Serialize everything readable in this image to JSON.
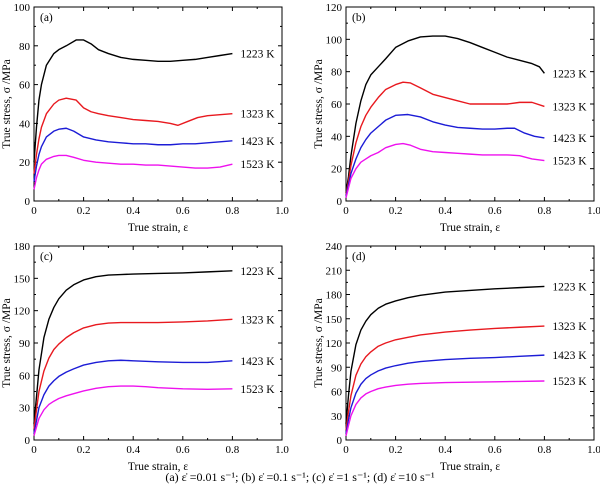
{
  "caption": "(a)   ε̇ =0.01 s⁻¹; (b)   ε̇ =0.1 s⁻¹; (c) ε̇ =1 s⁻¹; (d)   ε̇ =10 s⁻¹",
  "colors": {
    "1223 K": "#000000",
    "1323 K": "#e8191f",
    "1423 K": "#1c1cd6",
    "1523 K": "#ee11ee"
  },
  "chart_data": [
    {
      "type": "line",
      "panel": "(a)",
      "xlabel": "True strain, ε",
      "ylabel": "True stress, σ /MPa",
      "xlim": [
        0,
        1.0
      ],
      "ylim": [
        0,
        100
      ],
      "xticks": [
        "0",
        "0.2",
        "0.4",
        "0.6",
        "0.8",
        "1.0"
      ],
      "yticks": [
        "0",
        "20",
        "40",
        "60",
        "80",
        "100"
      ],
      "legend": "curve labels at right end of each curve",
      "series": [
        {
          "name": "1223 K",
          "x": [
            0,
            0.01,
            0.02,
            0.03,
            0.05,
            0.08,
            0.1,
            0.13,
            0.17,
            0.2,
            0.23,
            0.26,
            0.3,
            0.35,
            0.4,
            0.45,
            0.5,
            0.55,
            0.6,
            0.65,
            0.7,
            0.75,
            0.8
          ],
          "y": [
            20,
            38,
            52,
            60,
            70,
            76,
            78,
            80,
            83,
            83,
            81,
            78,
            76,
            74,
            73,
            72.5,
            72,
            72,
            72.5,
            73,
            74,
            75,
            76
          ]
        },
        {
          "name": "1323 K",
          "x": [
            0,
            0.01,
            0.02,
            0.03,
            0.05,
            0.08,
            0.1,
            0.13,
            0.17,
            0.2,
            0.23,
            0.26,
            0.3,
            0.35,
            0.4,
            0.45,
            0.5,
            0.55,
            0.58,
            0.62,
            0.66,
            0.7,
            0.75,
            0.8
          ],
          "y": [
            14,
            24,
            32,
            38,
            45,
            50,
            52,
            53,
            52,
            48,
            46,
            45,
            44,
            43,
            42,
            41.5,
            41,
            40,
            39,
            41,
            43,
            44,
            44.5,
            45
          ]
        },
        {
          "name": "1423 K",
          "x": [
            0,
            0.01,
            0.02,
            0.03,
            0.05,
            0.08,
            0.1,
            0.13,
            0.16,
            0.2,
            0.25,
            0.3,
            0.35,
            0.4,
            0.45,
            0.5,
            0.55,
            0.6,
            0.65,
            0.7,
            0.75,
            0.8
          ],
          "y": [
            10,
            18,
            24,
            28,
            33,
            36,
            37,
            37.5,
            36,
            33,
            31.5,
            30.5,
            30,
            29.5,
            29.5,
            29,
            29,
            29.5,
            29.5,
            30,
            30.5,
            31
          ]
        },
        {
          "name": "1523 K",
          "x": [
            0,
            0.01,
            0.02,
            0.03,
            0.05,
            0.08,
            0.1,
            0.13,
            0.16,
            0.2,
            0.25,
            0.3,
            0.35,
            0.4,
            0.45,
            0.5,
            0.55,
            0.6,
            0.65,
            0.7,
            0.75,
            0.8
          ],
          "y": [
            6,
            12,
            16,
            19,
            21.5,
            23,
            23.5,
            23.5,
            22.5,
            21,
            20,
            19.5,
            19,
            19,
            18.5,
            18.5,
            18,
            17.5,
            17,
            17,
            17.5,
            19
          ]
        }
      ]
    },
    {
      "type": "line",
      "panel": "(b)",
      "xlabel": "True strain, ε",
      "ylabel": "True stress, σ /MPa",
      "xlim": [
        0,
        1.0
      ],
      "ylim": [
        0,
        120
      ],
      "xticks": [
        "0",
        "0.2",
        "0.4",
        "0.6",
        "0.8",
        "1.0"
      ],
      "yticks": [
        "0",
        "20",
        "40",
        "60",
        "80",
        "100",
        "120"
      ],
      "legend": "curve labels at right end of each curve",
      "series": [
        {
          "name": "1223 K",
          "x": [
            0,
            0.01,
            0.02,
            0.04,
            0.06,
            0.08,
            0.1,
            0.13,
            0.16,
            0.2,
            0.25,
            0.3,
            0.35,
            0.4,
            0.45,
            0.5,
            0.55,
            0.6,
            0.65,
            0.7,
            0.75,
            0.78,
            0.8
          ],
          "y": [
            5,
            15,
            28,
            48,
            62,
            72,
            78,
            83,
            88,
            95,
            99,
            101.5,
            102,
            102,
            100.5,
            98,
            95,
            92,
            89,
            87,
            85,
            83,
            79
          ]
        },
        {
          "name": "1323 K",
          "x": [
            0,
            0.01,
            0.02,
            0.04,
            0.06,
            0.08,
            0.1,
            0.13,
            0.16,
            0.2,
            0.23,
            0.26,
            0.3,
            0.35,
            0.4,
            0.45,
            0.5,
            0.55,
            0.6,
            0.65,
            0.7,
            0.75,
            0.8
          ],
          "y": [
            4,
            12,
            22,
            36,
            46,
            53,
            58,
            64,
            69,
            72,
            73.5,
            73,
            70,
            66,
            64,
            62,
            60,
            60,
            60,
            60,
            61,
            61,
            58.5
          ]
        },
        {
          "name": "1423 K",
          "x": [
            0,
            0.01,
            0.02,
            0.04,
            0.06,
            0.08,
            0.1,
            0.13,
            0.16,
            0.2,
            0.25,
            0.3,
            0.35,
            0.4,
            0.45,
            0.5,
            0.55,
            0.6,
            0.65,
            0.68,
            0.72,
            0.76,
            0.8
          ],
          "y": [
            3,
            10,
            17,
            26,
            33,
            38,
            42,
            46,
            50,
            53,
            53.5,
            52,
            49,
            47,
            45.5,
            45,
            44.5,
            44.5,
            45,
            45,
            42,
            40,
            39
          ]
        },
        {
          "name": "1523 K",
          "x": [
            0,
            0.01,
            0.02,
            0.04,
            0.06,
            0.08,
            0.1,
            0.13,
            0.16,
            0.2,
            0.23,
            0.26,
            0.3,
            0.35,
            0.4,
            0.45,
            0.5,
            0.55,
            0.6,
            0.65,
            0.7,
            0.75,
            0.8
          ],
          "y": [
            2,
            8,
            14,
            20,
            24,
            26,
            28,
            30,
            33,
            35,
            35.5,
            34.5,
            32,
            30.5,
            30,
            29.5,
            29,
            28.5,
            28.5,
            28.5,
            28,
            26,
            25
          ]
        }
      ]
    },
    {
      "type": "line",
      "panel": "(c)",
      "xlabel": "True strain, ε",
      "ylabel": "True stress, σ /MPa",
      "xlim": [
        0,
        1.0
      ],
      "ylim": [
        0,
        180
      ],
      "xticks": [
        "0",
        "0.2",
        "0.4",
        "0.6",
        "0.8",
        "1.0"
      ],
      "yticks": [
        "0",
        "30",
        "60",
        "90",
        "120",
        "150",
        "180"
      ],
      "legend": "curve labels at right end of each curve",
      "series": [
        {
          "name": "1223 K",
          "x": [
            0,
            0.01,
            0.02,
            0.04,
            0.06,
            0.08,
            0.1,
            0.13,
            0.16,
            0.2,
            0.25,
            0.3,
            0.35,
            0.4,
            0.5,
            0.6,
            0.7,
            0.8
          ],
          "y": [
            15,
            40,
            65,
            95,
            112,
            123,
            131,
            139,
            144,
            148.5,
            151.5,
            153,
            153.5,
            154,
            154.5,
            155,
            156,
            157
          ]
        },
        {
          "name": "1323 K",
          "x": [
            0,
            0.01,
            0.02,
            0.04,
            0.06,
            0.08,
            0.1,
            0.13,
            0.16,
            0.2,
            0.25,
            0.3,
            0.35,
            0.4,
            0.5,
            0.6,
            0.7,
            0.8
          ],
          "y": [
            10,
            28,
            45,
            64,
            76,
            84,
            89,
            95,
            99.5,
            104,
            107,
            108.5,
            109,
            109,
            109,
            109.5,
            110.5,
            112
          ]
        },
        {
          "name": "1423 K",
          "x": [
            0,
            0.01,
            0.02,
            0.04,
            0.06,
            0.08,
            0.1,
            0.13,
            0.16,
            0.2,
            0.25,
            0.3,
            0.35,
            0.4,
            0.45,
            0.5,
            0.6,
            0.7,
            0.8
          ],
          "y": [
            6,
            18,
            30,
            42,
            50,
            55,
            59,
            63,
            66,
            69.5,
            72,
            73.5,
            74,
            73.5,
            73,
            72.5,
            72,
            72,
            73.5
          ]
        },
        {
          "name": "1523 K",
          "x": [
            0,
            0.01,
            0.02,
            0.04,
            0.06,
            0.08,
            0.1,
            0.13,
            0.16,
            0.2,
            0.25,
            0.3,
            0.35,
            0.4,
            0.45,
            0.5,
            0.6,
            0.7,
            0.8
          ],
          "y": [
            4,
            12,
            20,
            28,
            33,
            36,
            38.5,
            41,
            43,
            45.5,
            48,
            49.5,
            50,
            50,
            49.5,
            48.5,
            47.5,
            47,
            47.5
          ]
        }
      ]
    },
    {
      "type": "line",
      "panel": "(d)",
      "xlabel": "True strain, ε",
      "ylabel": "True stress, σ /MPa",
      "xlim": [
        0,
        1.0
      ],
      "ylim": [
        0,
        240
      ],
      "xticks": [
        "0",
        "0.2",
        "0.4",
        "0.6",
        "0.8",
        "1.0"
      ],
      "yticks": [
        "0",
        "30",
        "60",
        "90",
        "120",
        "150",
        "180",
        "210",
        "240"
      ],
      "legend": "curve labels at right end of each curve",
      "series": [
        {
          "name": "1223 K",
          "x": [
            0,
            0.01,
            0.02,
            0.04,
            0.06,
            0.08,
            0.1,
            0.13,
            0.16,
            0.2,
            0.25,
            0.3,
            0.4,
            0.5,
            0.6,
            0.7,
            0.8
          ],
          "y": [
            20,
            55,
            85,
            118,
            136,
            147,
            155,
            163,
            168,
            172,
            176,
            179,
            183,
            185,
            187,
            188.5,
            190
          ]
        },
        {
          "name": "1323 K",
          "x": [
            0,
            0.01,
            0.02,
            0.04,
            0.06,
            0.08,
            0.1,
            0.13,
            0.16,
            0.2,
            0.25,
            0.3,
            0.4,
            0.5,
            0.6,
            0.7,
            0.8
          ],
          "y": [
            12,
            35,
            55,
            80,
            94,
            103,
            109,
            116,
            120,
            124,
            127,
            130,
            133.5,
            136,
            138,
            139.5,
            141
          ]
        },
        {
          "name": "1423 K",
          "x": [
            0,
            0.01,
            0.02,
            0.04,
            0.06,
            0.08,
            0.1,
            0.13,
            0.16,
            0.2,
            0.25,
            0.3,
            0.4,
            0.5,
            0.6,
            0.7,
            0.8
          ],
          "y": [
            8,
            25,
            40,
            58,
            69,
            76,
            80.5,
            85.5,
            89,
            92,
            95,
            97,
            99.5,
            101,
            102,
            103.5,
            105
          ]
        },
        {
          "name": "1523 K",
          "x": [
            0,
            0.01,
            0.02,
            0.04,
            0.06,
            0.08,
            0.1,
            0.13,
            0.16,
            0.2,
            0.25,
            0.3,
            0.4,
            0.5,
            0.6,
            0.7,
            0.8
          ],
          "y": [
            5,
            18,
            30,
            44,
            52,
            57,
            60,
            63.5,
            65.5,
            67.5,
            69,
            70,
            71,
            71.5,
            72,
            72.5,
            73
          ]
        }
      ]
    }
  ]
}
